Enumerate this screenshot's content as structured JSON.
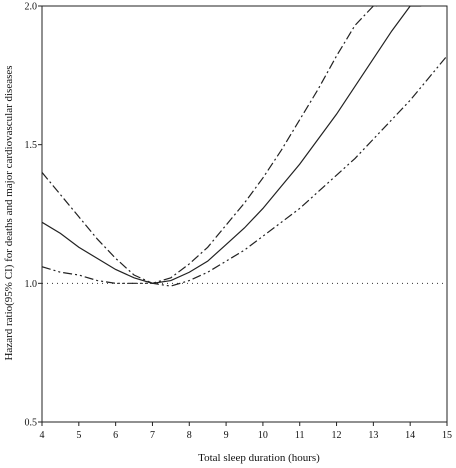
{
  "chart_data": {
    "type": "line",
    "title": "",
    "xlabel": "Total sleep duration (hours)",
    "ylabel": "Hazard ratio(95% CI) for deaths and major cardiovascular diseases",
    "xlim": [
      4,
      15
    ],
    "ylim": [
      0.5,
      2.0
    ],
    "x_ticks": [
      "4",
      "5",
      "6",
      "7",
      "8",
      "9",
      "10",
      "11",
      "12",
      "13",
      "14",
      "15"
    ],
    "y_ticks": [
      "0.5",
      "1.0",
      "1.5",
      "2.0"
    ],
    "y_tick_values": [
      0.5,
      1.0,
      1.5,
      2.0
    ],
    "reference_line": 1.0,
    "grid": false,
    "series": [
      {
        "style": "solid",
        "x": [
          4,
          4.5,
          5,
          5.5,
          6,
          6.5,
          7,
          7.5,
          8,
          8.5,
          9,
          9.5,
          10,
          10.5,
          11,
          11.5,
          12,
          12.5,
          13,
          13.5,
          14,
          14.3
        ],
        "y": [
          1.22,
          1.18,
          1.13,
          1.09,
          1.05,
          1.02,
          1.0,
          1.01,
          1.04,
          1.08,
          1.14,
          1.2,
          1.27,
          1.35,
          1.43,
          1.52,
          1.61,
          1.71,
          1.81,
          1.91,
          2.0,
          2.0
        ]
      },
      {
        "style": "dash-dot",
        "x": [
          4,
          4.5,
          5,
          5.5,
          6,
          6.5,
          7,
          7.5,
          8,
          8.5,
          9,
          9.5,
          10,
          10.5,
          11,
          11.5,
          12,
          12.5,
          13,
          13.1
        ],
        "y": [
          1.4,
          1.32,
          1.24,
          1.16,
          1.09,
          1.03,
          1.0,
          1.02,
          1.07,
          1.13,
          1.21,
          1.29,
          1.38,
          1.48,
          1.59,
          1.7,
          1.82,
          1.93,
          2.0,
          2.0
        ]
      },
      {
        "style": "dash-dot-dot",
        "x": [
          4,
          4.5,
          5,
          5.5,
          6,
          6.5,
          7,
          7.5,
          8,
          8.5,
          9,
          9.5,
          10,
          10.5,
          11,
          11.5,
          12,
          12.5,
          13,
          13.5,
          14,
          14.5,
          15
        ],
        "y": [
          1.06,
          1.04,
          1.03,
          1.01,
          1.0,
          1.0,
          1.0,
          0.99,
          1.01,
          1.04,
          1.08,
          1.12,
          1.17,
          1.22,
          1.27,
          1.33,
          1.39,
          1.45,
          1.52,
          1.59,
          1.66,
          1.74,
          1.82
        ]
      }
    ]
  }
}
